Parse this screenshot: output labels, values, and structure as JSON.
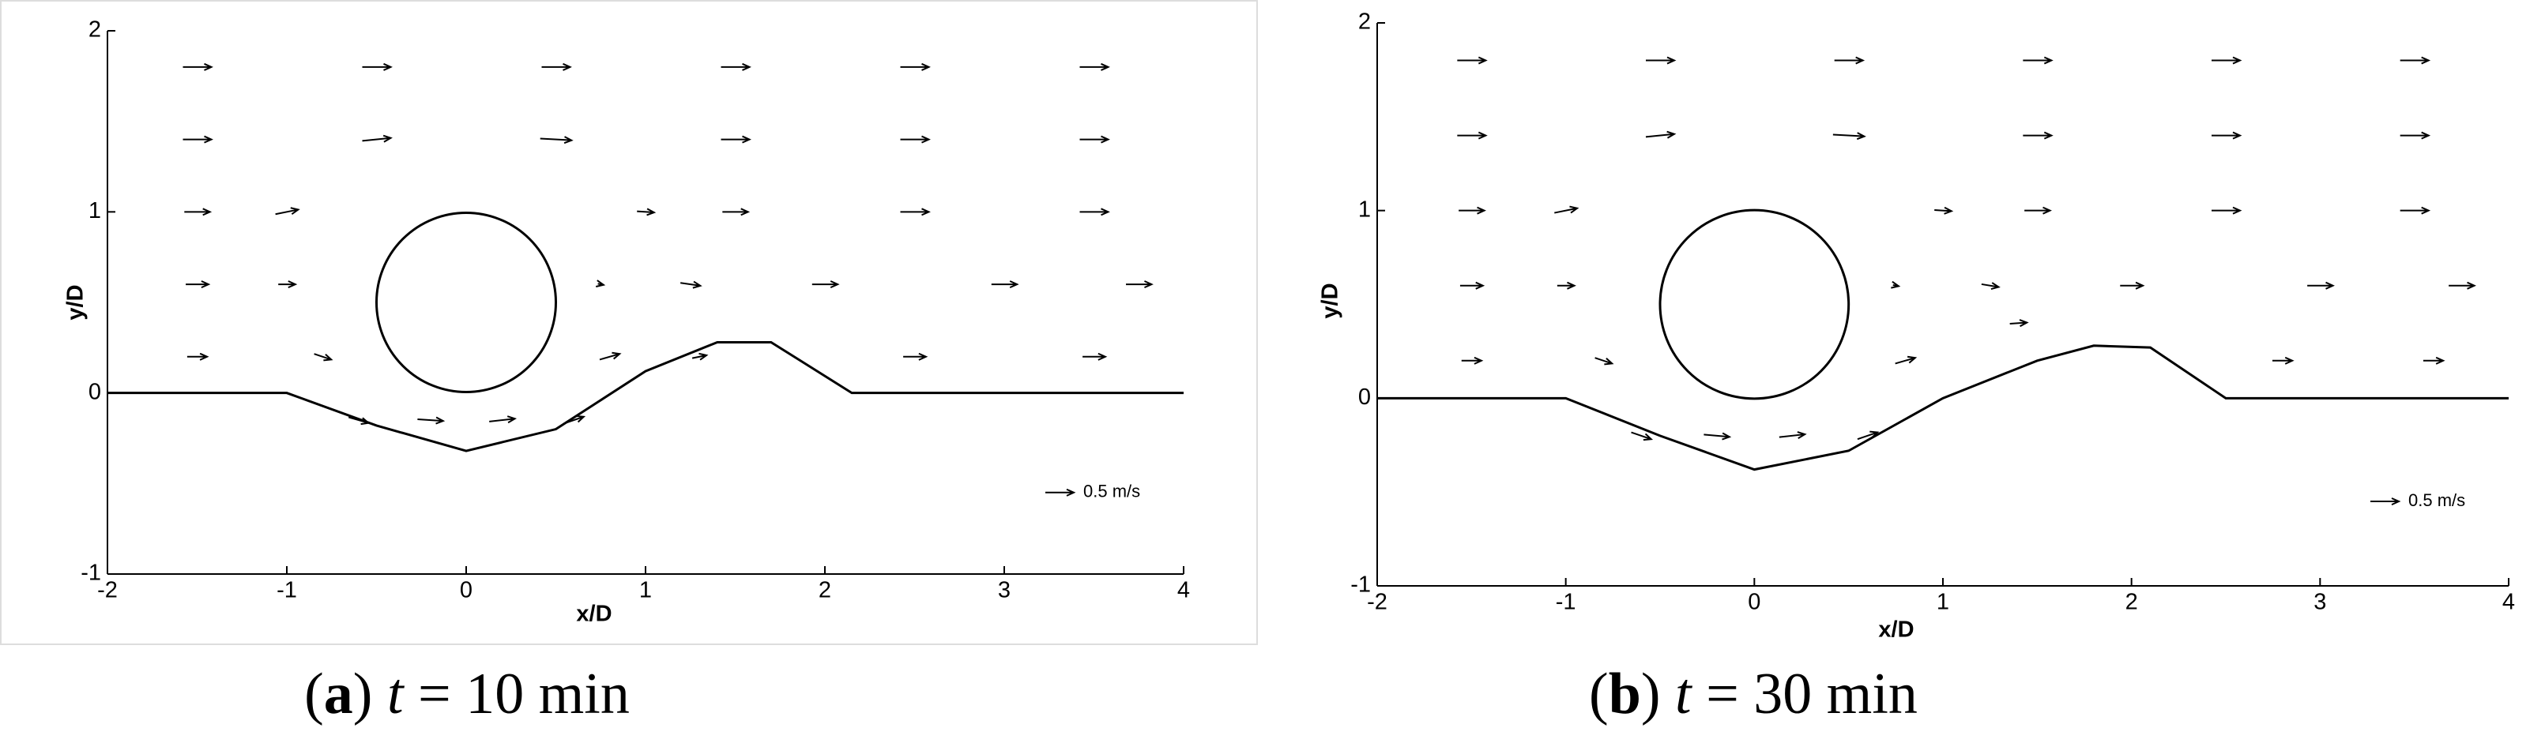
{
  "chart_data": [
    {
      "type": "quiver",
      "xlabel": "x/D",
      "ylabel": "y/D",
      "xlim": [
        -2,
        4
      ],
      "ylim": [
        -1,
        2
      ],
      "xticks": [
        -2,
        -1,
        0,
        1,
        2,
        3,
        4
      ],
      "yticks": [
        -1,
        0,
        1,
        2
      ],
      "color": "#000000",
      "bed": {
        "x": [
          -2,
          -1,
          -0.5,
          0,
          0.5,
          1,
          1.4,
          1.7,
          2.15,
          4
        ],
        "y": [
          0,
          0,
          -0.18,
          -0.32,
          -0.2,
          0.12,
          0.28,
          0.28,
          0,
          0
        ]
      },
      "cylinder": {
        "x": 0,
        "y": 0.5,
        "r": 0.5
      },
      "vectors": {
        "x": [
          -1.5,
          -0.5,
          0.5,
          1.5,
          2.5,
          3.5,
          -1.5,
          -0.5,
          0.5,
          1.5,
          2.5,
          3.5,
          -1.5,
          -1.0,
          1.0,
          1.5,
          2.5,
          3.5,
          -1.5,
          -1.0,
          0.75,
          1.25,
          2.0,
          3.0,
          3.75,
          -1.5,
          -0.8,
          0.8,
          1.3,
          2.5,
          3.5,
          -0.6,
          -0.2,
          0.2,
          0.6
        ],
        "y": [
          1.8,
          1.8,
          1.8,
          1.8,
          1.8,
          1.8,
          1.4,
          1.4,
          1.4,
          1.4,
          1.4,
          1.4,
          1.0,
          1.0,
          1.0,
          1.0,
          1.0,
          1.0,
          0.6,
          0.6,
          0.6,
          0.6,
          0.6,
          0.6,
          0.6,
          0.2,
          0.2,
          0.2,
          0.2,
          0.2,
          0.2,
          -0.15,
          -0.15,
          -0.15,
          -0.15
        ],
        "u": [
          0.5,
          0.5,
          0.5,
          0.5,
          0.5,
          0.5,
          0.5,
          0.5,
          0.55,
          0.5,
          0.5,
          0.5,
          0.45,
          0.4,
          0.3,
          0.45,
          0.5,
          0.5,
          0.4,
          0.3,
          0.1,
          0.35,
          0.45,
          0.45,
          0.45,
          0.35,
          0.3,
          0.35,
          0.25,
          0.4,
          0.4,
          0.35,
          0.45,
          0.45,
          0.35
        ],
        "v": [
          0,
          0,
          0,
          0,
          0,
          0,
          0,
          0.05,
          -0.03,
          0,
          0,
          0,
          0,
          0.08,
          -0.02,
          0,
          0,
          0,
          0,
          0,
          -0.02,
          -0.05,
          0,
          0,
          0,
          0,
          -0.1,
          0.1,
          0.05,
          0,
          0,
          -0.1,
          -0.03,
          0.05,
          0.12
        ]
      },
      "reference": {
        "label": "0.5 m/s",
        "value": 0.5
      },
      "caption": {
        "letter": "a",
        "variable": "t",
        "text": "= 10 min"
      }
    },
    {
      "type": "quiver",
      "xlabel": "x/D",
      "ylabel": "y/D",
      "xlim": [
        -2,
        4
      ],
      "ylim": [
        -1,
        2
      ],
      "xticks": [
        -2,
        -1,
        0,
        1,
        2,
        3,
        4
      ],
      "yticks": [
        -1,
        0,
        1,
        2
      ],
      "color": "#000000",
      "bed": {
        "x": [
          -2,
          -1,
          -0.5,
          0,
          0.5,
          1,
          1.5,
          1.8,
          2.1,
          2.5,
          4
        ],
        "y": [
          0,
          0,
          -0.2,
          -0.38,
          -0.28,
          0,
          0.2,
          0.28,
          0.27,
          0,
          0
        ]
      },
      "cylinder": {
        "x": 0,
        "y": 0.5,
        "r": 0.5
      },
      "vectors": {
        "x": [
          -1.5,
          -0.5,
          0.5,
          1.5,
          2.5,
          3.5,
          -1.5,
          -0.5,
          0.5,
          1.5,
          2.5,
          3.5,
          -1.5,
          -1.0,
          1.0,
          1.5,
          2.5,
          3.5,
          -1.5,
          -1.0,
          0.75,
          1.25,
          2.0,
          3.0,
          3.75,
          -1.5,
          -0.8,
          0.8,
          1.4,
          2.8,
          3.6,
          -0.6,
          -0.2,
          0.2,
          0.6
        ],
        "y": [
          1.8,
          1.8,
          1.8,
          1.8,
          1.8,
          1.8,
          1.4,
          1.4,
          1.4,
          1.4,
          1.4,
          1.4,
          1.0,
          1.0,
          1.0,
          1.0,
          1.0,
          1.0,
          0.6,
          0.6,
          0.6,
          0.6,
          0.6,
          0.6,
          0.6,
          0.2,
          0.2,
          0.2,
          0.4,
          0.2,
          0.2,
          -0.2,
          -0.2,
          -0.2,
          -0.2
        ],
        "u": [
          0.5,
          0.5,
          0.5,
          0.5,
          0.5,
          0.5,
          0.5,
          0.5,
          0.55,
          0.5,
          0.5,
          0.5,
          0.45,
          0.4,
          0.3,
          0.45,
          0.5,
          0.5,
          0.4,
          0.3,
          0.1,
          0.3,
          0.4,
          0.45,
          0.45,
          0.35,
          0.3,
          0.35,
          0.3,
          0.35,
          0.35,
          0.35,
          0.45,
          0.45,
          0.35
        ],
        "v": [
          0,
          0,
          0,
          0,
          0,
          0,
          0,
          0.05,
          -0.03,
          0,
          0,
          0,
          0,
          0.08,
          -0.02,
          0,
          0,
          0,
          0,
          0,
          -0.02,
          -0.05,
          0,
          0,
          0,
          0,
          -0.1,
          0.1,
          0.02,
          0,
          0,
          -0.12,
          -0.04,
          0.05,
          0.12
        ]
      },
      "reference": {
        "label": "0.5 m/s",
        "value": 0.5
      },
      "caption": {
        "letter": "b",
        "variable": "t",
        "text": "= 30 min"
      }
    }
  ]
}
